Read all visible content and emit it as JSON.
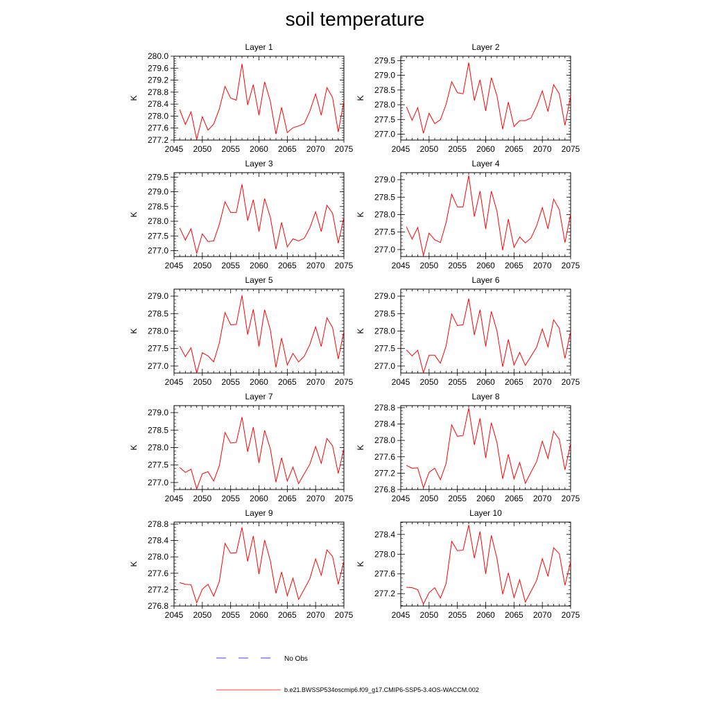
{
  "title": "soil temperature",
  "legend": {
    "obs_label": "No Obs",
    "model_label": "b.e21.BWSSP534oscmip6.f09_g17.CMIP6-SSP5-3.4OS-WACCM.002"
  },
  "colors": {
    "model_line": "#ff0000",
    "obs_line": "#0000ff",
    "axes": "#000000"
  },
  "chart_data": [
    {
      "type": "line",
      "title": "Layer 1",
      "xlabel": "",
      "ylabel": "K",
      "xlim": [
        2045,
        2075
      ],
      "ylim": [
        277.2,
        280.0
      ],
      "xticks": [
        2045,
        2050,
        2055,
        2060,
        2065,
        2070,
        2075
      ],
      "yticks": [
        "277.2",
        "277.6",
        "278.0",
        "278.4",
        "278.8",
        "279.2",
        "279.6",
        "280.0"
      ],
      "x": [
        2046,
        2047,
        2048,
        2049,
        2050,
        2051,
        2052,
        2053,
        2054,
        2055,
        2056,
        2057,
        2058,
        2059,
        2060,
        2061,
        2062,
        2063,
        2064,
        2065,
        2066,
        2067,
        2068,
        2069,
        2070,
        2071,
        2072,
        2073,
        2074,
        2075
      ],
      "series": [
        {
          "name": "b.e21.BWSSP534oscmip6.f09_g17.CMIP6-SSP5-3.4OS-WACCM.002",
          "values": [
            278.22,
            277.72,
            278.14,
            277.22,
            277.98,
            277.53,
            277.73,
            278.24,
            278.99,
            278.6,
            278.53,
            279.74,
            278.37,
            279.05,
            278.03,
            279.14,
            278.5,
            277.4,
            278.29,
            277.45,
            277.61,
            277.67,
            277.75,
            278.17,
            278.74,
            278.03,
            278.95,
            278.62,
            277.47,
            278.5
          ]
        }
      ]
    },
    {
      "type": "line",
      "title": "Layer 2",
      "xlabel": "",
      "ylabel": "K",
      "xlim": [
        2045,
        2075
      ],
      "ylim": [
        276.8,
        279.65
      ],
      "xticks": [
        2045,
        2050,
        2055,
        2060,
        2065,
        2070,
        2075
      ],
      "yticks": [
        "277.0",
        "277.5",
        "278.0",
        "278.5",
        "279.0",
        "279.5"
      ],
      "x": [
        2046,
        2047,
        2048,
        2049,
        2050,
        2051,
        2052,
        2053,
        2054,
        2055,
        2056,
        2057,
        2058,
        2059,
        2060,
        2061,
        2062,
        2063,
        2064,
        2065,
        2066,
        2067,
        2068,
        2069,
        2070,
        2071,
        2072,
        2073,
        2074,
        2075
      ],
      "series": [
        {
          "name": "b.e21.BWSSP534oscmip6.f09_g17.CMIP6-SSP5-3.4OS-WACCM.002",
          "values": [
            277.93,
            277.47,
            277.9,
            277.03,
            277.71,
            277.36,
            277.49,
            278.01,
            278.78,
            278.41,
            278.37,
            279.43,
            278.14,
            278.85,
            277.79,
            278.92,
            278.3,
            277.17,
            278.09,
            277.26,
            277.46,
            277.46,
            277.55,
            277.95,
            278.47,
            277.77,
            278.68,
            278.37,
            277.3,
            278.3
          ]
        }
      ]
    },
    {
      "type": "line",
      "title": "Layer 3",
      "xlabel": "",
      "ylabel": "K",
      "xlim": [
        2045,
        2075
      ],
      "ylim": [
        276.8,
        279.65
      ],
      "xticks": [
        2045,
        2050,
        2055,
        2060,
        2065,
        2070,
        2075
      ],
      "yticks": [
        "277.0",
        "277.5",
        "278.0",
        "278.5",
        "279.0",
        "279.5"
      ],
      "x": [
        2046,
        2047,
        2048,
        2049,
        2050,
        2051,
        2052,
        2053,
        2054,
        2055,
        2056,
        2057,
        2058,
        2059,
        2060,
        2061,
        2062,
        2063,
        2064,
        2065,
        2066,
        2067,
        2068,
        2069,
        2070,
        2071,
        2072,
        2073,
        2074,
        2075
      ],
      "series": [
        {
          "name": "b.e21.BWSSP534oscmip6.f09_g17.CMIP6-SSP5-3.4OS-WACCM.002",
          "values": [
            277.77,
            277.36,
            277.74,
            276.91,
            277.57,
            277.31,
            277.33,
            277.89,
            278.66,
            278.3,
            278.3,
            279.25,
            278.02,
            278.73,
            277.65,
            278.77,
            278.14,
            277.05,
            277.96,
            277.13,
            277.4,
            277.33,
            277.42,
            277.78,
            278.32,
            277.65,
            278.54,
            278.27,
            277.25,
            278.14
          ]
        }
      ]
    },
    {
      "type": "line",
      "title": "Layer 4",
      "xlabel": "",
      "ylabel": "K",
      "xlim": [
        2045,
        2075
      ],
      "ylim": [
        276.8,
        279.2
      ],
      "xticks": [
        2045,
        2050,
        2055,
        2060,
        2065,
        2070,
        2075
      ],
      "yticks": [
        "277.0",
        "277.5",
        "278.0",
        "278.5",
        "279.0"
      ],
      "x": [
        2046,
        2047,
        2048,
        2049,
        2050,
        2051,
        2052,
        2053,
        2054,
        2055,
        2056,
        2057,
        2058,
        2059,
        2060,
        2061,
        2062,
        2063,
        2064,
        2065,
        2066,
        2067,
        2068,
        2069,
        2070,
        2071,
        2072,
        2073,
        2074,
        2075
      ],
      "series": [
        {
          "name": "b.e21.BWSSP534oscmip6.f09_g17.CMIP6-SSP5-3.4OS-WACCM.002",
          "values": [
            277.65,
            277.3,
            277.63,
            276.83,
            277.47,
            277.28,
            277.2,
            277.77,
            278.58,
            278.22,
            278.22,
            279.12,
            277.94,
            278.67,
            277.59,
            278.67,
            278.09,
            276.98,
            277.87,
            277.06,
            277.36,
            277.19,
            277.33,
            277.68,
            278.2,
            277.59,
            278.44,
            278.14,
            277.2,
            278.02
          ]
        }
      ]
    },
    {
      "type": "line",
      "title": "Layer 5",
      "xlabel": "",
      "ylabel": "K",
      "xlim": [
        2045,
        2075
      ],
      "ylim": [
        276.8,
        279.2
      ],
      "xticks": [
        2045,
        2050,
        2055,
        2060,
        2065,
        2070,
        2075
      ],
      "yticks": [
        "277.0",
        "277.5",
        "278.0",
        "278.5",
        "279.0"
      ],
      "x": [
        2046,
        2047,
        2048,
        2049,
        2050,
        2051,
        2052,
        2053,
        2054,
        2055,
        2056,
        2057,
        2058,
        2059,
        2060,
        2061,
        2062,
        2063,
        2064,
        2065,
        2066,
        2067,
        2068,
        2069,
        2070,
        2071,
        2072,
        2073,
        2074,
        2075
      ],
      "series": [
        {
          "name": "b.e21.BWSSP534oscmip6.f09_g17.CMIP6-SSP5-3.4OS-WACCM.002",
          "values": [
            277.57,
            277.27,
            277.52,
            276.8,
            277.38,
            277.29,
            277.12,
            277.66,
            278.53,
            278.18,
            278.19,
            279.02,
            277.9,
            278.62,
            277.56,
            278.61,
            278.04,
            276.96,
            277.8,
            277.03,
            277.36,
            277.12,
            277.28,
            277.62,
            278.12,
            277.56,
            278.38,
            278.1,
            277.2,
            277.99
          ]
        }
      ]
    },
    {
      "type": "line",
      "title": "Layer 6",
      "xlabel": "",
      "ylabel": "K",
      "xlim": [
        2045,
        2075
      ],
      "ylim": [
        276.8,
        279.2
      ],
      "xticks": [
        2045,
        2050,
        2055,
        2060,
        2065,
        2070,
        2075
      ],
      "yticks": [
        "277.0",
        "277.5",
        "278.0",
        "278.5",
        "279.0"
      ],
      "x": [
        2046,
        2047,
        2048,
        2049,
        2050,
        2051,
        2052,
        2053,
        2054,
        2055,
        2056,
        2057,
        2058,
        2059,
        2060,
        2061,
        2062,
        2063,
        2064,
        2065,
        2066,
        2067,
        2068,
        2069,
        2070,
        2071,
        2072,
        2073,
        2074,
        2075
      ],
      "series": [
        {
          "name": "b.e21.BWSSP534oscmip6.f09_g17.CMIP6-SSP5-3.4OS-WACCM.002",
          "values": [
            277.46,
            277.29,
            277.45,
            276.81,
            277.31,
            277.31,
            277.08,
            277.57,
            278.49,
            278.16,
            278.18,
            278.93,
            277.89,
            278.61,
            277.56,
            278.56,
            278.0,
            276.98,
            277.76,
            277.03,
            277.39,
            277.02,
            277.28,
            277.54,
            278.06,
            277.55,
            278.32,
            278.08,
            277.22,
            278.0
          ]
        }
      ]
    },
    {
      "type": "line",
      "title": "Layer 7",
      "xlabel": "",
      "ylabel": "K",
      "xlim": [
        2045,
        2075
      ],
      "ylim": [
        276.8,
        279.2
      ],
      "xticks": [
        2045,
        2050,
        2055,
        2060,
        2065,
        2070,
        2075
      ],
      "yticks": [
        "277.0",
        "277.5",
        "278.0",
        "278.5",
        "279.0"
      ],
      "x": [
        2046,
        2047,
        2048,
        2049,
        2050,
        2051,
        2052,
        2053,
        2054,
        2055,
        2056,
        2057,
        2058,
        2059,
        2060,
        2061,
        2062,
        2063,
        2064,
        2065,
        2066,
        2067,
        2068,
        2069,
        2070,
        2071,
        2072,
        2073,
        2074,
        2075
      ],
      "series": [
        {
          "name": "b.e21.BWSSP534oscmip6.f09_g17.CMIP6-SSP5-3.4OS-WACCM.002",
          "values": [
            277.43,
            277.29,
            277.38,
            276.82,
            277.25,
            277.31,
            277.04,
            277.48,
            278.43,
            278.13,
            278.15,
            278.87,
            277.88,
            278.58,
            277.56,
            278.49,
            277.97,
            277.01,
            277.71,
            277.04,
            277.44,
            276.97,
            277.25,
            277.53,
            278.03,
            277.55,
            278.26,
            278.05,
            277.26,
            277.97
          ]
        }
      ]
    },
    {
      "type": "line",
      "title": "Layer 8",
      "xlabel": "",
      "ylabel": "K",
      "xlim": [
        2045,
        2075
      ],
      "ylim": [
        276.8,
        278.85
      ],
      "xticks": [
        2045,
        2050,
        2055,
        2060,
        2065,
        2070,
        2075
      ],
      "yticks": [
        "276.8",
        "277.2",
        "277.6",
        "278.0",
        "278.4",
        "278.8"
      ],
      "x": [
        2046,
        2047,
        2048,
        2049,
        2050,
        2051,
        2052,
        2053,
        2054,
        2055,
        2056,
        2057,
        2058,
        2059,
        2060,
        2061,
        2062,
        2063,
        2064,
        2065,
        2066,
        2067,
        2068,
        2069,
        2070,
        2071,
        2072,
        2073,
        2074,
        2075
      ],
      "series": [
        {
          "name": "b.e21.BWSSP534oscmip6.f09_g17.CMIP6-SSP5-3.4OS-WACCM.002",
          "values": [
            277.39,
            277.32,
            277.33,
            276.84,
            277.22,
            277.32,
            277.04,
            277.43,
            278.38,
            278.1,
            278.12,
            278.79,
            277.89,
            278.54,
            277.57,
            278.43,
            277.94,
            277.06,
            277.66,
            277.06,
            277.46,
            276.95,
            277.22,
            277.48,
            277.98,
            277.56,
            278.22,
            278.03,
            277.28,
            277.93
          ]
        }
      ]
    },
    {
      "type": "line",
      "title": "Layer 9",
      "xlabel": "",
      "ylabel": "K",
      "xlim": [
        2045,
        2075
      ],
      "ylim": [
        276.8,
        278.85
      ],
      "xticks": [
        2045,
        2050,
        2055,
        2060,
        2065,
        2070,
        2075
      ],
      "yticks": [
        "276.8",
        "277.2",
        "277.6",
        "278.0",
        "278.4",
        "278.8"
      ],
      "x": [
        2046,
        2047,
        2048,
        2049,
        2050,
        2051,
        2052,
        2053,
        2054,
        2055,
        2056,
        2057,
        2058,
        2059,
        2060,
        2061,
        2062,
        2063,
        2064,
        2065,
        2066,
        2067,
        2068,
        2069,
        2070,
        2071,
        2072,
        2073,
        2074,
        2075
      ],
      "series": [
        {
          "name": "b.e21.BWSSP534oscmip6.f09_g17.CMIP6-SSP5-3.4OS-WACCM.002",
          "values": [
            277.37,
            277.33,
            277.32,
            276.88,
            277.21,
            277.33,
            277.04,
            277.4,
            278.33,
            278.09,
            278.1,
            278.72,
            277.89,
            278.51,
            277.58,
            278.41,
            277.91,
            277.11,
            277.63,
            277.05,
            277.48,
            276.96,
            277.21,
            277.47,
            277.95,
            277.55,
            278.17,
            278.01,
            277.33,
            277.9
          ]
        }
      ]
    },
    {
      "type": "line",
      "title": "Layer 10",
      "xlabel": "",
      "ylabel": "K",
      "xlim": [
        2045,
        2075
      ],
      "ylim": [
        276.95,
        278.65
      ],
      "xticks": [
        2045,
        2050,
        2055,
        2060,
        2065,
        2070,
        2075
      ],
      "yticks": [
        "277.2",
        "277.6",
        "278.0",
        "278.4"
      ],
      "x": [
        2046,
        2047,
        2048,
        2049,
        2050,
        2051,
        2052,
        2053,
        2054,
        2055,
        2056,
        2057,
        2058,
        2059,
        2060,
        2061,
        2062,
        2063,
        2064,
        2065,
        2066,
        2067,
        2068,
        2069,
        2070,
        2071,
        2072,
        2073,
        2074,
        2075
      ],
      "series": [
        {
          "name": "b.e21.BWSSP534oscmip6.f09_g17.CMIP6-SSP5-3.4OS-WACCM.002",
          "values": [
            277.33,
            277.32,
            277.28,
            276.99,
            277.22,
            277.32,
            277.11,
            277.4,
            278.26,
            278.07,
            278.08,
            278.59,
            277.92,
            278.46,
            277.6,
            278.38,
            277.91,
            277.19,
            277.62,
            277.12,
            277.48,
            277.03,
            277.25,
            277.47,
            277.91,
            277.55,
            278.13,
            278.01,
            277.37,
            277.85
          ]
        }
      ]
    }
  ]
}
